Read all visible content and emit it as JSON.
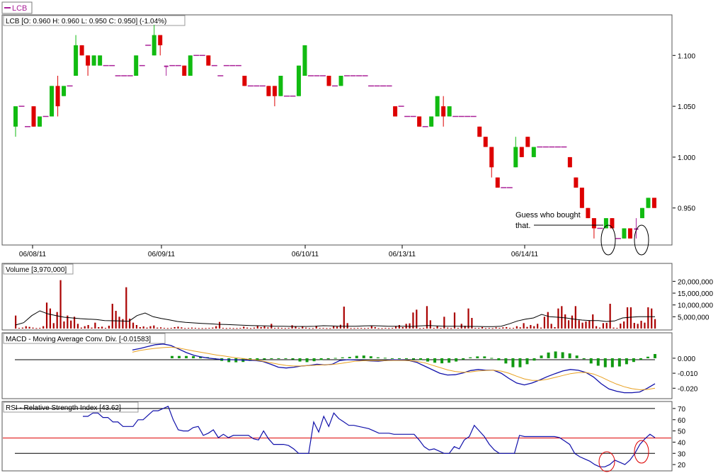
{
  "header": {
    "legend_symbol": "LCB"
  },
  "price_panel": {
    "label": "LCB [O: 0.960  H: 0.960  L: 0.950  C: 0.950] (-1.04%)",
    "annotation": [
      "Guess who bought",
      "that."
    ]
  },
  "volume_panel": {
    "label": "Volume [3,970,000]"
  },
  "macd_panel": {
    "label": "MACD - Moving Average Conv. Div. [-0.01583]"
  },
  "rsi_panel": {
    "label": "RSI - Relative Strength Index [43.62]"
  },
  "colors": {
    "up": "#11bb11",
    "down": "#dd0000",
    "flat": "#aa2299",
    "volume": "#aa0000",
    "macd": "#1010aa",
    "signal": "#e8a020",
    "hist": "#119911",
    "rsi_ref": "#dd0000"
  },
  "chart_data": [
    {
      "type": "candlestick",
      "ylim": [
        0.915,
        1.135
      ],
      "yticks": [
        "1.100",
        "1.050",
        "1.000",
        "0.950"
      ],
      "x_dates": [
        "06/08/11",
        "06/09/11",
        "06/10/11",
        "06/13/11",
        "06/14/11"
      ],
      "candles": [
        [
          1.03,
          1.05,
          1.02,
          1.05
        ],
        [
          1.05,
          1.05,
          1.05,
          1.05
        ],
        [
          1.03,
          1.03,
          1.03,
          1.03
        ],
        [
          1.05,
          1.05,
          1.03,
          1.03
        ],
        [
          1.03,
          1.04,
          1.03,
          1.04
        ],
        [
          1.04,
          1.04,
          1.04,
          1.04
        ],
        [
          1.04,
          1.07,
          1.04,
          1.07
        ],
        [
          1.07,
          1.08,
          1.04,
          1.05
        ],
        [
          1.06,
          1.07,
          1.06,
          1.07
        ],
        [
          1.07,
          1.07,
          1.07,
          1.07
        ],
        [
          1.08,
          1.12,
          1.08,
          1.11
        ],
        [
          1.11,
          1.11,
          1.1,
          1.1
        ],
        [
          1.1,
          1.1,
          1.08,
          1.09
        ],
        [
          1.09,
          1.1,
          1.09,
          1.1
        ],
        [
          1.09,
          1.1,
          1.09,
          1.1
        ],
        [
          1.09,
          1.09,
          1.09,
          1.09
        ],
        [
          1.09,
          1.09,
          1.09,
          1.09
        ],
        [
          1.08,
          1.08,
          1.08,
          1.08
        ],
        [
          1.08,
          1.08,
          1.08,
          1.08
        ],
        [
          1.08,
          1.08,
          1.08,
          1.08
        ],
        [
          1.08,
          1.1,
          1.08,
          1.1
        ],
        [
          1.09,
          1.09,
          1.09,
          1.09
        ],
        [
          1.11,
          1.11,
          1.11,
          1.11
        ],
        [
          1.1,
          1.13,
          1.1,
          1.12
        ],
        [
          1.12,
          1.12,
          1.1,
          1.11
        ],
        [
          1.09,
          1.09,
          1.08,
          1.09
        ],
        [
          1.09,
          1.09,
          1.09,
          1.09
        ],
        [
          1.09,
          1.09,
          1.09,
          1.09
        ],
        [
          1.09,
          1.09,
          1.08,
          1.08
        ],
        [
          1.08,
          1.1,
          1.08,
          1.1
        ],
        [
          1.1,
          1.1,
          1.1,
          1.1
        ],
        [
          1.1,
          1.1,
          1.1,
          1.1
        ],
        [
          1.1,
          1.1,
          1.09,
          1.09
        ],
        [
          1.09,
          1.09,
          1.09,
          1.09
        ],
        [
          1.08,
          1.08,
          1.08,
          1.08
        ],
        [
          1.09,
          1.09,
          1.09,
          1.09
        ],
        [
          1.09,
          1.09,
          1.09,
          1.09
        ],
        [
          1.09,
          1.09,
          1.09,
          1.09
        ],
        [
          1.08,
          1.08,
          1.07,
          1.07
        ],
        [
          1.07,
          1.07,
          1.07,
          1.07
        ],
        [
          1.07,
          1.07,
          1.07,
          1.07
        ],
        [
          1.07,
          1.07,
          1.07,
          1.07
        ],
        [
          1.07,
          1.07,
          1.06,
          1.06
        ],
        [
          1.07,
          1.07,
          1.05,
          1.06
        ],
        [
          1.06,
          1.08,
          1.06,
          1.08
        ],
        [
          1.06,
          1.06,
          1.06,
          1.06
        ],
        [
          1.06,
          1.06,
          1.06,
          1.06
        ],
        [
          1.06,
          1.09,
          1.06,
          1.09
        ],
        [
          1.08,
          1.11,
          1.08,
          1.11
        ],
        [
          1.08,
          1.08,
          1.08,
          1.08
        ],
        [
          1.08,
          1.08,
          1.08,
          1.08
        ],
        [
          1.08,
          1.08,
          1.08,
          1.08
        ],
        [
          1.08,
          1.08,
          1.07,
          1.07
        ],
        [
          1.07,
          1.07,
          1.07,
          1.07
        ],
        [
          1.07,
          1.08,
          1.07,
          1.08
        ],
        [
          1.08,
          1.08,
          1.08,
          1.08
        ],
        [
          1.08,
          1.08,
          1.08,
          1.08
        ],
        [
          1.08,
          1.08,
          1.08,
          1.08
        ],
        [
          1.08,
          1.08,
          1.08,
          1.08
        ],
        [
          1.07,
          1.07,
          1.07,
          1.07
        ],
        [
          1.07,
          1.07,
          1.07,
          1.07
        ],
        [
          1.07,
          1.07,
          1.07,
          1.07
        ],
        [
          1.07,
          1.07,
          1.07,
          1.07
        ],
        [
          1.05,
          1.05,
          1.04,
          1.04
        ],
        [
          1.05,
          1.05,
          1.05,
          1.05
        ],
        [
          1.04,
          1.04,
          1.04,
          1.04
        ],
        [
          1.04,
          1.04,
          1.04,
          1.04
        ],
        [
          1.04,
          1.04,
          1.03,
          1.03
        ],
        [
          1.03,
          1.03,
          1.03,
          1.03
        ],
        [
          1.03,
          1.04,
          1.03,
          1.04
        ],
        [
          1.04,
          1.06,
          1.04,
          1.06
        ],
        [
          1.05,
          1.06,
          1.03,
          1.04
        ],
        [
          1.04,
          1.05,
          1.04,
          1.05
        ],
        [
          1.04,
          1.04,
          1.04,
          1.04
        ],
        [
          1.04,
          1.04,
          1.04,
          1.04
        ],
        [
          1.04,
          1.04,
          1.04,
          1.04
        ],
        [
          1.04,
          1.04,
          1.04,
          1.04
        ],
        [
          1.03,
          1.03,
          1.02,
          1.02
        ],
        [
          1.02,
          1.02,
          1.01,
          1.01
        ],
        [
          1.01,
          1.01,
          0.98,
          0.99
        ],
        [
          0.98,
          0.98,
          0.97,
          0.97
        ],
        [
          0.97,
          0.97,
          0.97,
          0.97
        ],
        [
          0.97,
          0.97,
          0.97,
          0.97
        ],
        [
          0.99,
          1.02,
          0.99,
          1.01
        ],
        [
          1.01,
          1.01,
          1.0,
          1.0
        ],
        [
          1.02,
          1.02,
          1.01,
          1.01
        ],
        [
          1.0,
          1.01,
          1.0,
          1.01
        ],
        [
          1.01,
          1.01,
          1.01,
          1.01
        ],
        [
          1.01,
          1.01,
          1.01,
          1.01
        ],
        [
          1.01,
          1.01,
          1.01,
          1.01
        ],
        [
          1.01,
          1.01,
          1.01,
          1.01
        ],
        [
          1.01,
          1.01,
          1.01,
          1.01
        ],
        [
          1.0,
          1.0,
          0.99,
          0.99
        ],
        [
          0.98,
          0.98,
          0.97,
          0.97
        ],
        [
          0.97,
          0.97,
          0.95,
          0.95
        ],
        [
          0.95,
          0.95,
          0.94,
          0.94
        ],
        [
          0.94,
          0.94,
          0.92,
          0.93
        ],
        [
          0.93,
          0.93,
          0.93,
          0.93
        ],
        [
          0.93,
          0.94,
          0.93,
          0.94
        ],
        [
          0.94,
          0.94,
          0.93,
          0.93
        ],
        [
          0.92,
          0.92,
          0.92,
          0.92
        ],
        [
          0.92,
          0.93,
          0.92,
          0.93
        ],
        [
          0.93,
          0.93,
          0.92,
          0.92
        ],
        [
          0.93,
          0.94,
          0.92,
          0.93
        ],
        [
          0.94,
          0.95,
          0.94,
          0.95
        ],
        [
          0.95,
          0.96,
          0.95,
          0.96
        ],
        [
          0.96,
          0.96,
          0.95,
          0.95
        ]
      ]
    },
    {
      "type": "bar",
      "title": "Volume",
      "ylim": [
        0,
        27000000
      ],
      "yticks": [
        "20,000,000",
        "15,000,000",
        "10,000,000",
        "5,000,000"
      ],
      "values": [
        5.5,
        0.3,
        0.4,
        1.0,
        0.7,
        0.4,
        0.2,
        0.3,
        1.0,
        11.0,
        8.5,
        2.3,
        7.0,
        20.5,
        3.0,
        5.5,
        3.4,
        5.0,
        2.0,
        0.4,
        1.0,
        1.5,
        0.4,
        2.5,
        0.6,
        0.8,
        0.3,
        1.2,
        10.5,
        7.5,
        5.0,
        4.0,
        17.5,
        4.2,
        2.5,
        1.5,
        0.6,
        0.9,
        0.4,
        1.0,
        1.3,
        0.4,
        0.5,
        0.3,
        0.2,
        0.3,
        0.6,
        0.8,
        0.5,
        0.2,
        0.3,
        0.4,
        0.3,
        0.2,
        0.2,
        0.2,
        0.3,
        0.4,
        1.0,
        2.8,
        0.3,
        0.2,
        0.3,
        0.2,
        0.2,
        0.3,
        0.8,
        0.4,
        0.2,
        0.4,
        1.3,
        0.6,
        1.0,
        0.5,
        2.0,
        0.3,
        0.4,
        0.3,
        0.2,
        0.3,
        1.4,
        0.8,
        0.3,
        1.0,
        0.4,
        0.2,
        0.2,
        1.2,
        0.3,
        0.3,
        0.2,
        0.2,
        1.0,
        0.8,
        1.6,
        9.3,
        2.3,
        0.2,
        0.2,
        0.3,
        0.3,
        0.2,
        0.3,
        1.0,
        0.6,
        0.2,
        0.2,
        0.3,
        0.2,
        0.3,
        1.0,
        1.5,
        0.6,
        2.0,
        2.2,
        6.8,
        8.0,
        0.2,
        0.3,
        9.5,
        3.5,
        0.3,
        1.0,
        0.3,
        5.0,
        0.4,
        0.2,
        6.8,
        0.3,
        2.0,
        1.2,
        8.5,
        4.5,
        0.3,
        0.3,
        0.6,
        0.2,
        0.3,
        0.2,
        0.5,
        0.3,
        0.5,
        0.6,
        0.3,
        0.3,
        1.0,
        0.5,
        2.3,
        0.7,
        1.5,
        1.0,
        2.0,
        0.4,
        5.0,
        7.0,
        2.0,
        0.6,
        8.5,
        9.5,
        6.0,
        3.5,
        5.5,
        9.5,
        3.5,
        2.5,
        3.0,
        3.5,
        6.0,
        1.0,
        0.4,
        2.3,
        2.4,
        10.5,
        0.4,
        0.3,
        2.1,
        3.0,
        9.0,
        9.0,
        2.4,
        2.0,
        3.3,
        2.5,
        9.0,
        8.5,
        4.0
      ],
      "avg": [
        1.5,
        2.5,
        5.5,
        7.5,
        6.2,
        5.5,
        4.8,
        4.5,
        4.2,
        4.0,
        3.8,
        3.4,
        3.3,
        3.2,
        3.1,
        5.5,
        6.6,
        5.0,
        4.3,
        3.7,
        3.0,
        2.6,
        2.4,
        2.2,
        2.0,
        1.8,
        1.7,
        1.6,
        1.4,
        1.3,
        1.2,
        1.1,
        1.0,
        1.0,
        0.9,
        0.9,
        0.9,
        1.0,
        1.2,
        1.1,
        1.0,
        1.0,
        1.0,
        1.1,
        1.2,
        1.1,
        1.0,
        1.0,
        1.0,
        0.9,
        1.1,
        1.3,
        1.1,
        1.0,
        1.0,
        1.0,
        0.9,
        0.9,
        0.8,
        0.8,
        1.0,
        2.0,
        3.2,
        4.0,
        4.5,
        6.0,
        5.0,
        4.8,
        4.5,
        4.0,
        3.6,
        3.4,
        3.4,
        3.0,
        3.2,
        4.5,
        4.8,
        5.0,
        5.0,
        5.0
      ],
      "series": [
        {
          "values": "values"
        },
        {
          "values": "avg"
        }
      ]
    },
    {
      "type": "line",
      "title": "MACD - Moving Average Conv. Div.",
      "ylim": [
        -0.026,
        0.016
      ],
      "yticks": [
        "0.000",
        "-0.010",
        "-0.020"
      ],
      "series": [
        {
          "values": [
            0.0055,
            0.0065,
            0.0078,
            0.009,
            0.0095,
            0.0085,
            0.0062,
            0.0038,
            0.002,
            0.0008,
            0.0,
            -0.0005,
            -0.001,
            -0.001,
            -0.0012,
            -0.0013,
            -0.0015,
            -0.0022,
            -0.004,
            -0.006,
            -0.0065,
            -0.006,
            -0.0052,
            -0.0048,
            -0.004,
            -0.0045,
            -0.004,
            -0.0015,
            -0.001,
            -0.0012,
            -0.0015,
            -0.0018,
            -0.002,
            -0.0015,
            -0.001,
            -0.0012,
            -0.0016,
            -0.0028,
            -0.0052,
            -0.0076,
            -0.01,
            -0.0112,
            -0.011,
            -0.0098,
            -0.0082,
            -0.0075,
            -0.008,
            -0.008,
            -0.01,
            -0.0135,
            -0.0165,
            -0.0178,
            -0.0165,
            -0.0145,
            -0.0122,
            -0.0103,
            -0.0085,
            -0.0075,
            -0.008,
            -0.0095,
            -0.0125,
            -0.017,
            -0.0205,
            -0.022,
            -0.023,
            -0.023,
            -0.0225,
            -0.02,
            -0.017
          ]
        },
        {
          "values": [
            0.004,
            0.0052,
            0.006,
            0.0066,
            0.0071,
            0.0074,
            0.0068,
            0.0058,
            0.0048,
            0.0039,
            0.003,
            0.0021,
            0.0014,
            0.0006,
            0.0,
            -0.0006,
            -0.0012,
            -0.002,
            -0.003,
            -0.004,
            -0.0048,
            -0.0052,
            -0.0052,
            -0.0049,
            -0.0046,
            -0.0044,
            -0.0042,
            -0.0036,
            -0.0028,
            -0.002,
            -0.0017,
            -0.0016,
            -0.0016,
            -0.0016,
            -0.0015,
            -0.0015,
            -0.0016,
            -0.0021,
            -0.003,
            -0.0046,
            -0.0062,
            -0.0078,
            -0.0088,
            -0.0094,
            -0.0091,
            -0.0085,
            -0.0082,
            -0.008,
            -0.0086,
            -0.01,
            -0.012,
            -0.0138,
            -0.0148,
            -0.0148,
            -0.014,
            -0.0128,
            -0.0115,
            -0.0103,
            -0.0096,
            -0.0095,
            -0.0105,
            -0.0125,
            -0.015,
            -0.0172,
            -0.019,
            -0.0203,
            -0.021,
            -0.0208,
            -0.02
          ]
        }
      ],
      "histogram": [
        0.0015,
        0.0015,
        0.0015,
        0.0014,
        0.0012,
        0.0007,
        -0.0004,
        -0.0018,
        -0.0026,
        -0.0027,
        -0.0025,
        -0.0018,
        -0.0013,
        -0.0008,
        -0.0005,
        -0.0003,
        -0.0002,
        -0.0008,
        -0.0022,
        -0.0026,
        -0.002,
        -0.0012,
        -0.0006,
        0.0002,
        0.0006,
        0.0009,
        0.0016,
        0.0018,
        0.0013,
        0.0006,
        0.0003,
        -0.0003,
        -0.0005,
        -0.0005,
        -0.0008,
        -0.0012,
        -0.0022,
        -0.003,
        -0.0034,
        -0.003,
        -0.0022,
        -0.0009,
        0.0006,
        0.0012,
        0.0012,
        0.0002,
        -0.0014,
        -0.0035,
        -0.006,
        -0.006,
        -0.004,
        -0.0016,
        0.0018,
        0.0038,
        0.0045,
        0.004,
        0.0032,
        0.0018,
        -0.0006,
        -0.0035,
        -0.005,
        -0.006,
        -0.006,
        -0.0055,
        -0.004,
        -0.0025,
        -0.001,
        0.001,
        0.0028
      ]
    },
    {
      "type": "line",
      "title": "RSI - Relative Strength Index",
      "ylim": [
        15,
        75
      ],
      "yticks": [
        "70",
        "60",
        "50",
        "40",
        "30",
        "20"
      ],
      "reference_lines": [
        70,
        43.62,
        30
      ],
      "values": [
        63,
        63,
        66,
        66,
        62,
        62,
        58,
        58,
        54,
        54,
        54,
        60,
        60,
        64,
        68,
        68,
        70,
        72,
        60,
        51,
        50,
        50,
        53,
        54,
        46,
        48,
        51,
        44,
        47,
        44,
        46,
        46,
        46,
        46,
        43,
        42,
        50,
        43,
        38,
        38,
        38,
        37,
        34,
        30,
        30,
        30,
        58,
        49,
        63,
        54,
        66,
        61,
        58,
        55,
        55,
        54,
        53,
        52,
        50,
        48,
        48,
        48,
        47,
        47,
        47,
        47,
        47,
        42,
        36,
        33,
        34,
        32,
        30,
        30,
        36,
        34,
        42,
        45,
        55,
        50,
        45,
        38,
        33,
        30,
        30,
        30,
        30,
        46,
        45,
        45,
        45,
        45,
        45,
        45,
        45,
        44,
        41,
        38,
        30,
        27,
        25,
        23,
        20,
        18,
        18,
        20,
        24,
        22,
        20,
        24,
        30,
        38,
        43,
        47,
        44
      ]
    }
  ]
}
